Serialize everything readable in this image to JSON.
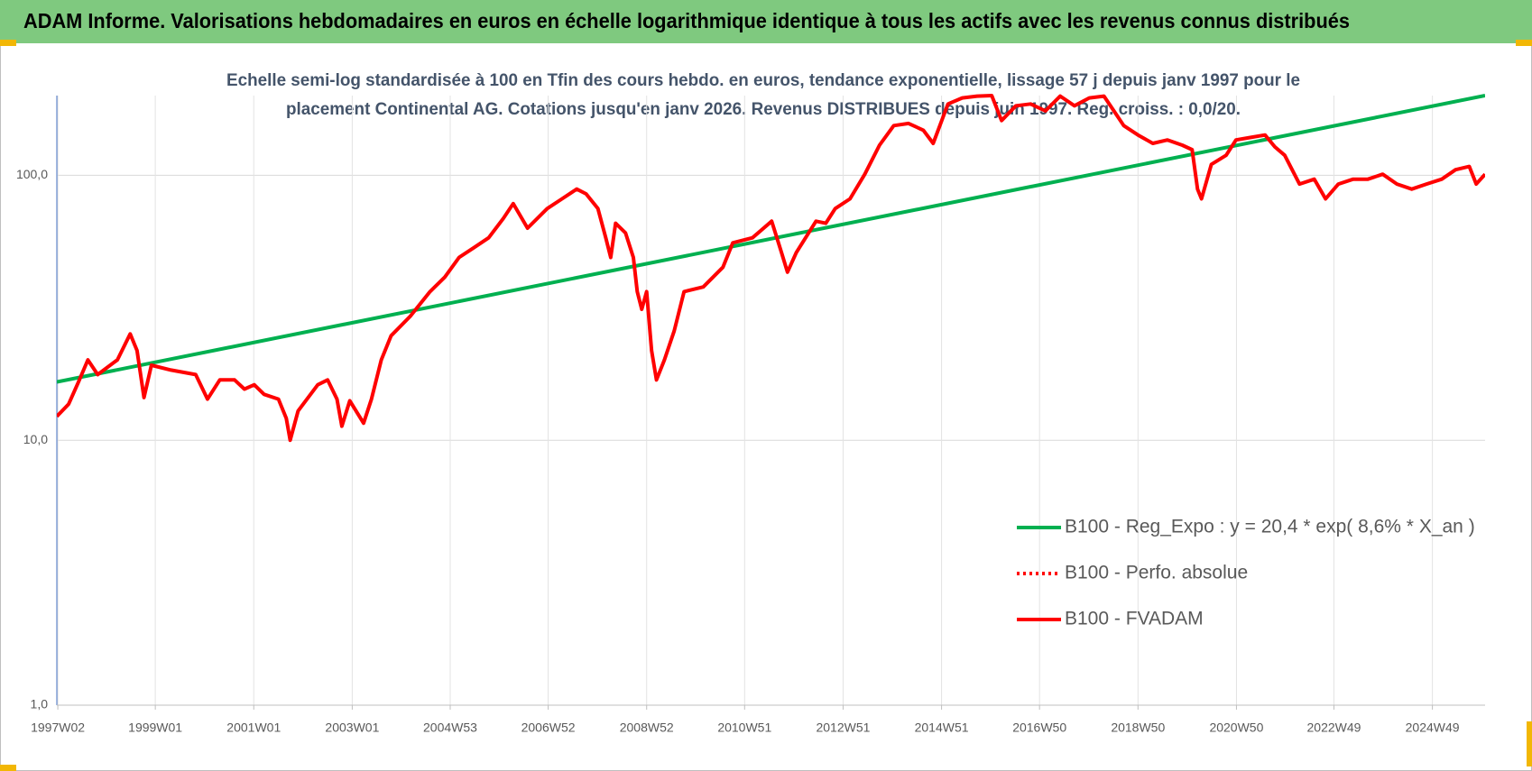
{
  "chart_data": {
    "type": "line",
    "title": "ADAM Informe. Valorisations hebdomadaires en euros en échelle logarithmique identique à tous les actifs avec les revenus connus distribués",
    "subtitle": [
      "Echelle semi-log standardisée à 100 en Tfin des cours hebdo. en euros, tendance exponentielle, lissage 57 j depuis janv 1997 pour le",
      "placement Continental AG. Cotations jusqu'en janv 2026. Revenus DISTRIBUES depuis juin 1997. Reg. croiss. : 0,0/20."
    ],
    "log_scale": true,
    "grid": true,
    "legend": "lower right",
    "xlim": [
      1997.0,
      2026.01
    ],
    "xticks": [
      {
        "value": 1997.02,
        "label": "1997W02"
      },
      {
        "value": 1999.0,
        "label": "1999W01"
      },
      {
        "value": 2001.0,
        "label": "2001W01"
      },
      {
        "value": 2003.0,
        "label": "2003W01"
      },
      {
        "value": 2004.99,
        "label": "2004W53"
      },
      {
        "value": 2006.98,
        "label": "2006W52"
      },
      {
        "value": 2008.98,
        "label": "2008W52"
      },
      {
        "value": 2010.97,
        "label": "2010W51"
      },
      {
        "value": 2012.97,
        "label": "2012W51"
      },
      {
        "value": 2014.97,
        "label": "2014W51"
      },
      {
        "value": 2016.96,
        "label": "2016W50"
      },
      {
        "value": 2018.96,
        "label": "2018W50"
      },
      {
        "value": 2020.96,
        "label": "2020W50"
      },
      {
        "value": 2022.94,
        "label": "2022W49"
      },
      {
        "value": 2024.94,
        "label": "2024W49"
      }
    ],
    "ylim": [
      1,
      200
    ],
    "yticks": [
      {
        "value": 1,
        "label": "1,0"
      },
      {
        "value": 10,
        "label": "10,0"
      },
      {
        "value": 100,
        "label": "100,0"
      }
    ],
    "series": [
      {
        "name": "B100 - Reg_Expo : y = 20,4 * exp( 8,6% *  X_an )",
        "color": "#00b050",
        "dash": "solid",
        "x": [
          1997.0,
          2026.01
        ],
        "values": [
          16.6,
          200
        ]
      },
      {
        "name": "B100 - Perfo. absolue",
        "color": "#ff0000",
        "dash": "dotted",
        "x": [],
        "values": []
      },
      {
        "name": "B100 - FVADAM",
        "color": "#ff0000",
        "dash": "solid",
        "x": [
          1997.0,
          1997.24,
          1997.44,
          1997.63,
          1997.83,
          1998.23,
          1998.49,
          1998.63,
          1998.77,
          1998.92,
          1999.32,
          1999.82,
          2000.06,
          2000.31,
          2000.61,
          2000.81,
          2001.01,
          2001.21,
          2001.5,
          2001.66,
          2001.74,
          2001.9,
          2002.3,
          2002.5,
          2002.69,
          2002.79,
          2002.95,
          2003.23,
          2003.39,
          2003.59,
          2003.79,
          2004.18,
          2004.58,
          2004.88,
          2005.17,
          2005.47,
          2005.77,
          2006.07,
          2006.27,
          2006.56,
          2006.96,
          2007.26,
          2007.56,
          2007.75,
          2007.99,
          2008.15,
          2008.25,
          2008.35,
          2008.55,
          2008.71,
          2008.79,
          2008.88,
          2008.98,
          2009.08,
          2009.18,
          2009.34,
          2009.54,
          2009.74,
          2010.13,
          2010.53,
          2010.73,
          2011.13,
          2011.52,
          2011.72,
          2011.84,
          2012.02,
          2012.42,
          2012.62,
          2012.81,
          2013.11,
          2013.41,
          2013.71,
          2014.0,
          2014.3,
          2014.6,
          2014.8,
          2015.1,
          2015.39,
          2015.69,
          2015.99,
          2016.19,
          2016.48,
          2016.78,
          2017.08,
          2017.38,
          2017.67,
          2017.97,
          2018.27,
          2018.47,
          2018.67,
          2018.96,
          2019.26,
          2019.56,
          2019.86,
          2020.06,
          2020.17,
          2020.25,
          2020.45,
          2020.75,
          2020.95,
          2021.25,
          2021.54,
          2021.74,
          2021.94,
          2022.24,
          2022.54,
          2022.77,
          2023.03,
          2023.33,
          2023.63,
          2023.93,
          2024.22,
          2024.52,
          2024.82,
          2025.13,
          2025.41,
          2025.69,
          2025.83,
          2026.01
        ],
        "values": [
          12.3,
          13.7,
          16.6,
          20.1,
          17.7,
          20.1,
          25.2,
          21.8,
          14.5,
          19.2,
          18.4,
          17.7,
          14.3,
          16.9,
          16.9,
          15.6,
          16.2,
          14.9,
          14.3,
          12.1,
          10.0,
          12.9,
          16.2,
          16.9,
          14.3,
          11.3,
          14.1,
          11.6,
          14.3,
          20.1,
          24.8,
          29.4,
          36.4,
          41.3,
          49.0,
          53.3,
          58.1,
          68.8,
          78.2,
          63.2,
          74.9,
          81.5,
          88.7,
          85.1,
          74.9,
          58.1,
          49.0,
          65.9,
          60.6,
          49.0,
          36.4,
          31.2,
          36.4,
          21.8,
          16.9,
          20.1,
          25.9,
          36.4,
          37.9,
          45.0,
          55.6,
          58.1,
          67.1,
          51.1,
          43.1,
          51.1,
          67.1,
          65.9,
          74.9,
          81.5,
          101,
          130,
          154,
          157,
          148,
          132,
          186,
          196,
          199,
          200,
          161,
          183,
          186,
          175,
          199,
          183,
          196,
          199,
          175,
          154,
          142,
          132,
          136,
          130,
          125,
          88.7,
          81.5,
          110,
          119,
          136,
          139,
          142,
          128,
          119,
          92.7,
          96.7,
          81.5,
          92.7,
          96.7,
          96.7,
          101,
          92.7,
          88.7,
          92.7,
          96.7,
          105,
          108,
          92.7,
          101
        ]
      }
    ]
  }
}
